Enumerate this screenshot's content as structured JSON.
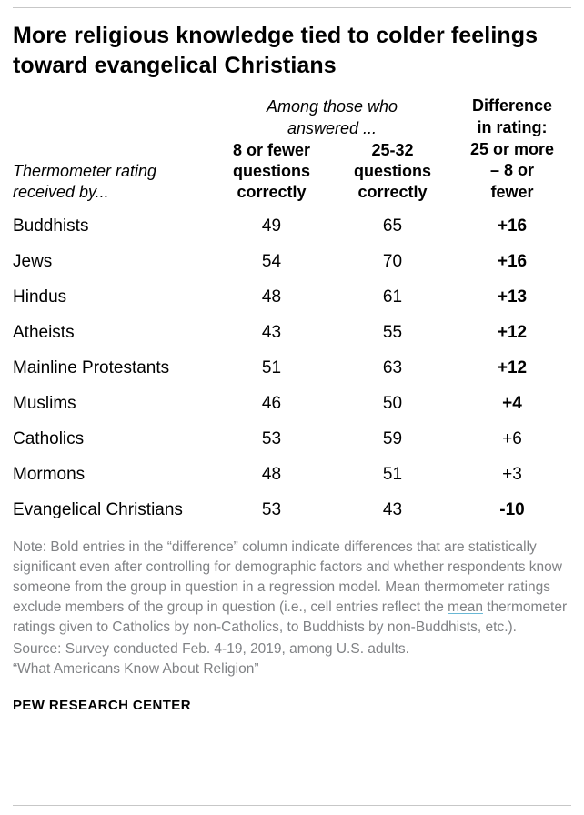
{
  "title": "More religious knowledge tied to colder feelings toward evangelical Christians",
  "table": {
    "among_header": "Among those who answered ...",
    "row_header": "Thermometer rating received by...",
    "col_low": "8 or fewer questions correctly",
    "col_high": "25-32 questions correctly",
    "col_diff": "Difference in rating: 25 or more – 8 or fewer",
    "rows": [
      {
        "label": "Buddhists",
        "low": "49",
        "high": "65",
        "diff": "+16",
        "significant": true
      },
      {
        "label": "Jews",
        "low": "54",
        "high": "70",
        "diff": "+16",
        "significant": true
      },
      {
        "label": "Hindus",
        "low": "48",
        "high": "61",
        "diff": "+13",
        "significant": true
      },
      {
        "label": "Atheists",
        "low": "43",
        "high": "55",
        "diff": "+12",
        "significant": true
      },
      {
        "label": "Mainline Protestants",
        "low": "51",
        "high": "63",
        "diff": "+12",
        "significant": true
      },
      {
        "label": "Muslims",
        "low": "46",
        "high": "50",
        "diff": "+4",
        "significant": true
      },
      {
        "label": "Catholics",
        "low": "53",
        "high": "59",
        "diff": "+6",
        "significant": false
      },
      {
        "label": "Mormons",
        "low": "48",
        "high": "51",
        "diff": "+3",
        "significant": false
      },
      {
        "label": "Evangelical Christians",
        "low": "53",
        "high": "43",
        "diff": "-10",
        "significant": true
      }
    ]
  },
  "note": {
    "before_link": "Note: Bold entries in the “difference” column indicate differences that are statistically significant even after controlling for demographic factors and whether respondents know someone from the group in question in a regression model. Mean thermometer ratings exclude members of the group in question (i.e., cell entries reflect the ",
    "link": "mean",
    "after_link": " thermometer ratings given to Catholics by non-Catholics, to Buddhists by non-Buddhists, etc.)."
  },
  "source_line1": "Source: Survey conducted Feb. 4-19, 2019, among U.S. adults.",
  "source_line2": "“What Americans Know About Religion”",
  "footer": "PEW RESEARCH CENTER",
  "colors": {
    "text": "#000000",
    "note_gray": "#808285",
    "rule_gray": "#c7c7c7",
    "link_underline": "#69b8d6"
  },
  "chart_data": {
    "type": "table",
    "title": "More religious knowledge tied to colder feelings toward evangelical Christians",
    "columns": [
      "Thermometer rating received by...",
      "8 or fewer questions correctly",
      "25-32 questions correctly",
      "Difference in rating: 25 or more – 8 or fewer"
    ],
    "rows": [
      [
        "Buddhists",
        49,
        65,
        "+16"
      ],
      [
        "Jews",
        54,
        70,
        "+16"
      ],
      [
        "Hindus",
        48,
        61,
        "+13"
      ],
      [
        "Atheists",
        43,
        55,
        "+12"
      ],
      [
        "Mainline Protestants",
        51,
        63,
        "+12"
      ],
      [
        "Muslims",
        46,
        50,
        "+4"
      ],
      [
        "Catholics",
        53,
        59,
        "+6"
      ],
      [
        "Mormons",
        48,
        51,
        "+3"
      ],
      [
        "Evangelical Christians",
        53,
        43,
        "-10"
      ]
    ],
    "bold_difference_rows": [
      "Buddhists",
      "Jews",
      "Hindus",
      "Atheists",
      "Mainline Protestants",
      "Muslims",
      "Evangelical Christians"
    ],
    "note": "Bold entries in the difference column indicate statistically significant differences after controls",
    "source": "Survey conducted Feb. 4-19, 2019, among U.S. adults. “What Americans Know About Religion”"
  }
}
